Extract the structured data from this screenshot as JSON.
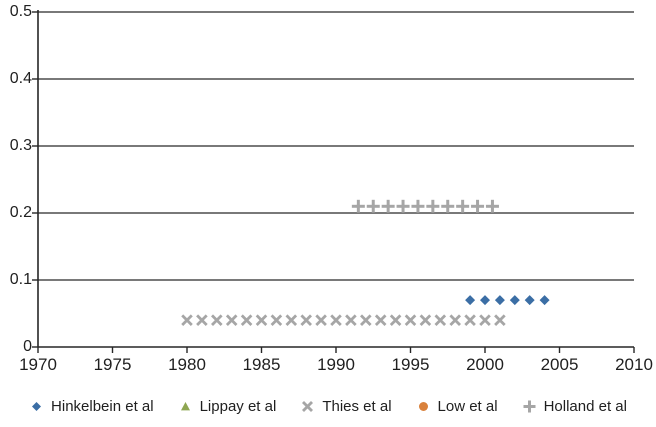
{
  "figure": {
    "background": "#ffffff",
    "axis_color": "#262626",
    "gridline_color": "#4d4d4d",
    "text_color": "#1f1f1f"
  },
  "chart_data": {
    "type": "scatter",
    "title": "",
    "xlabel": "",
    "ylabel": "",
    "xlim": [
      1970,
      2010
    ],
    "ylim": [
      0,
      0.5
    ],
    "x_ticks": [
      1970,
      1975,
      1980,
      1985,
      1990,
      1995,
      2000,
      2005,
      2010
    ],
    "x_tick_labels": [
      "1970",
      "1975",
      "1980",
      "1985",
      "1990",
      "1995",
      "2000",
      "2005",
      "2010"
    ],
    "y_ticks": [
      0,
      0.1,
      0.2,
      0.3,
      0.4,
      0.5
    ],
    "y_tick_labels": [
      "0",
      "0.1",
      "0.2",
      "0.3",
      "0.4",
      "0.5"
    ],
    "grid": "horizontal",
    "legend_position": "bottom",
    "series": [
      {
        "name": "Hinkelbein et al",
        "marker": "diamond",
        "color": "#3B6EA5",
        "x": [
          1999,
          2000,
          2001,
          2002,
          2003,
          2004
        ],
        "y": [
          0.07,
          0.07,
          0.07,
          0.07,
          0.07,
          0.07
        ]
      },
      {
        "name": "Lippay et al",
        "marker": "triangle",
        "color": "#8EA651",
        "x": [],
        "y": []
      },
      {
        "name": "Thies et al",
        "marker": "x",
        "color": "#A6A6A6",
        "x": [
          1980,
          1981,
          1982,
          1983,
          1984,
          1985,
          1986,
          1987,
          1988,
          1989,
          1990,
          1991,
          1992,
          1993,
          1994,
          1995,
          1996,
          1997,
          1998,
          1999,
          2000,
          2001
        ],
        "y": [
          0.04,
          0.04,
          0.04,
          0.04,
          0.04,
          0.04,
          0.04,
          0.04,
          0.04,
          0.04,
          0.04,
          0.04,
          0.04,
          0.04,
          0.04,
          0.04,
          0.04,
          0.04,
          0.04,
          0.04,
          0.04,
          0.04
        ]
      },
      {
        "name": "Low et al",
        "marker": "circle",
        "color": "#D9813C",
        "x": [],
        "y": []
      },
      {
        "name": "Holland et al",
        "marker": "plus",
        "color": "#A6A6A6",
        "x": [
          1991.5,
          1992.5,
          1993.5,
          1994.5,
          1995.5,
          1996.5,
          1997.5,
          1998.5,
          1999.5,
          2000.5
        ],
        "y": [
          0.21,
          0.21,
          0.21,
          0.21,
          0.21,
          0.21,
          0.21,
          0.21,
          0.21,
          0.21
        ]
      }
    ]
  }
}
